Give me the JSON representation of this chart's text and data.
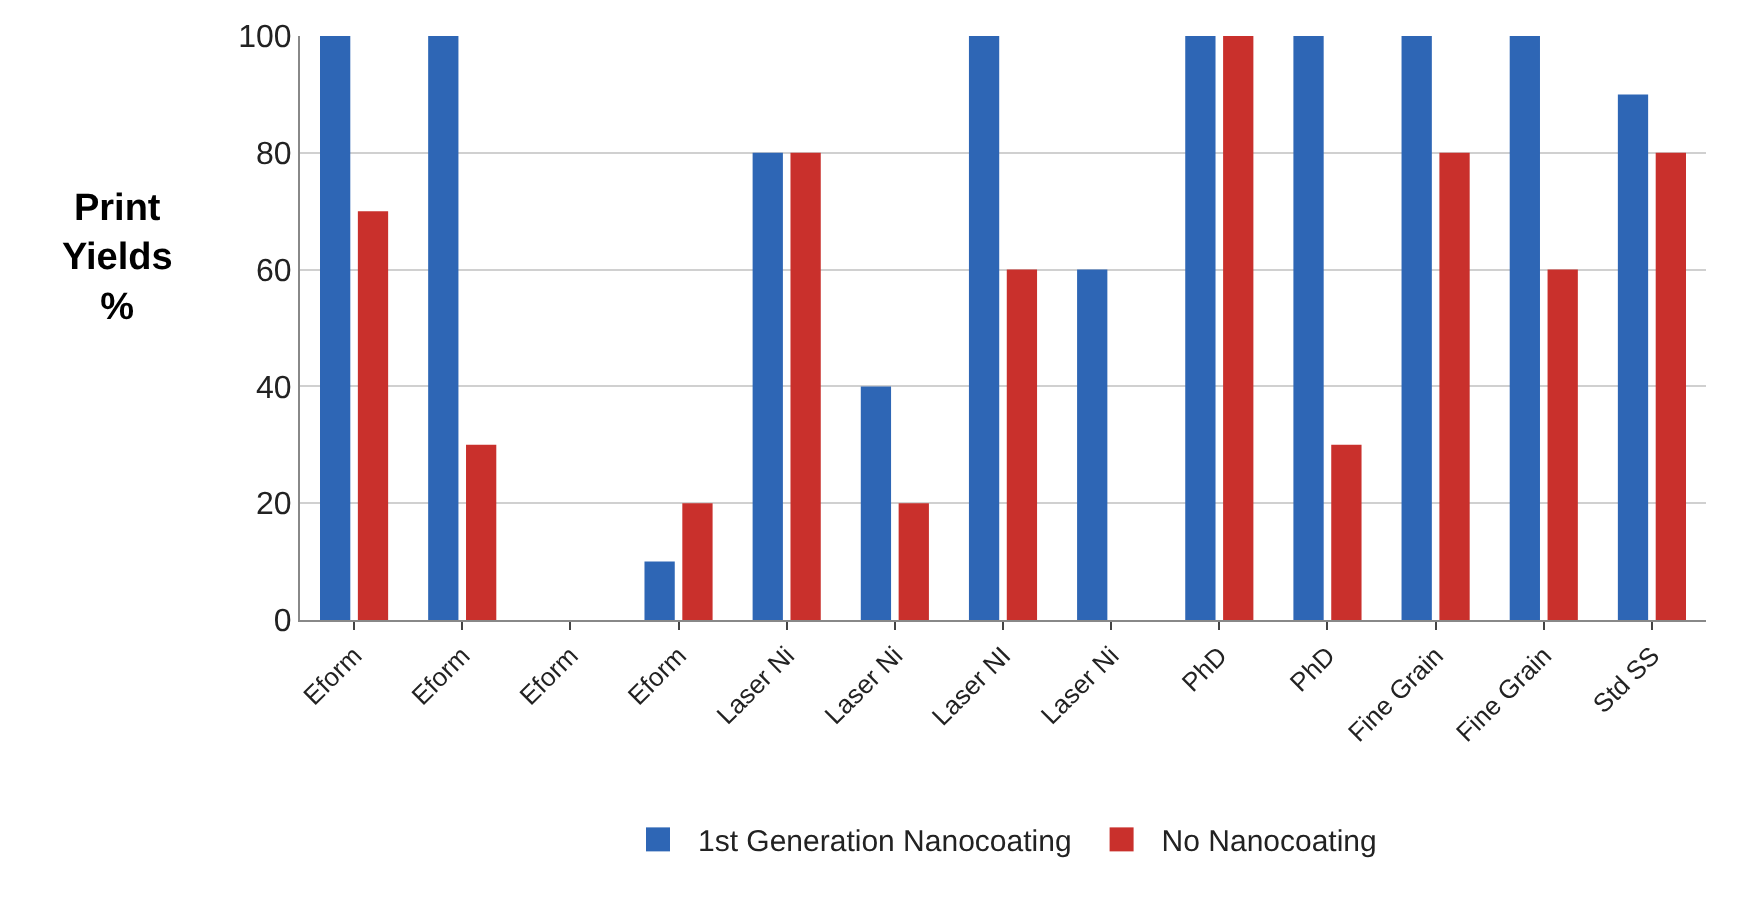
{
  "chart_data": {
    "type": "bar",
    "ylabel": "Print\nYields\n%",
    "categories": [
      "Eform",
      "Eform",
      "Eform",
      "Eform",
      "Laser Ni",
      "Laser Ni",
      "Laser NI",
      "Laser Ni",
      "PhD",
      "PhD",
      "Fine Grain",
      "Fine Grain",
      "Std SS"
    ],
    "series": [
      {
        "name": "1st Generation Nanocoating",
        "color": "#2e66b5",
        "values": [
          100,
          100,
          0,
          10,
          80,
          40,
          100,
          60,
          100,
          100,
          100,
          100,
          90
        ]
      },
      {
        "name": "No Nanocoating",
        "color": "#c9302c",
        "values": [
          70,
          30,
          0,
          20,
          80,
          20,
          60,
          0,
          100,
          30,
          80,
          60,
          80
        ]
      }
    ],
    "ylim": [
      0,
      100
    ],
    "yticks": [
      0,
      20,
      40,
      60,
      80,
      100
    ],
    "grid": "y",
    "legend": "bottom"
  }
}
